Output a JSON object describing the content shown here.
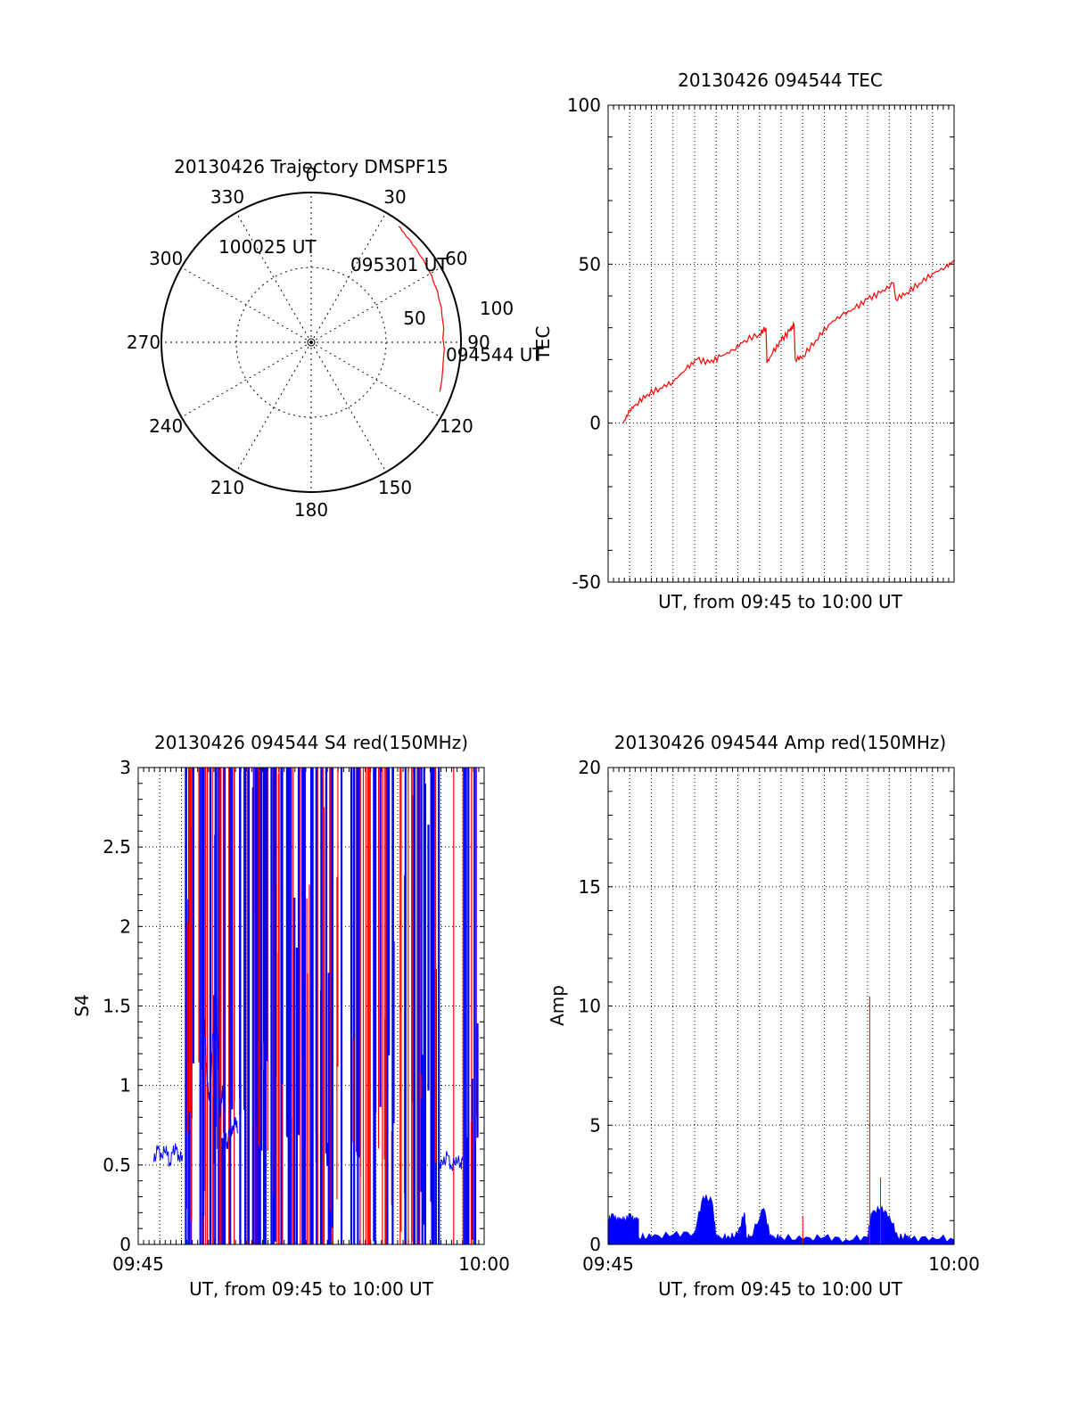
{
  "colors": {
    "primary": "#ff0000",
    "secondary": "#0000ff",
    "axis": "#000000",
    "grid": "#000000"
  },
  "chart_data": [
    {
      "type": "polar",
      "title": "20130426 Trajectory DMSPF15",
      "angle_ticks": [
        "0",
        "30",
        "60",
        "90",
        "120",
        "150",
        "180",
        "210",
        "240",
        "270",
        "300",
        "330"
      ],
      "radial_ticks": [
        "50",
        "100"
      ],
      "radial_max": 100,
      "trajectory": {
        "azimuth_deg": [
          111,
          107,
          103,
          98,
          93,
          88,
          84,
          79,
          75,
          71,
          68,
          64,
          61,
          57,
          54,
          51,
          48,
          46,
          44,
          42,
          40,
          39,
          38,
          37
        ],
        "zenith_deg": [
          92,
          91,
          90,
          89,
          89,
          88,
          89,
          89,
          90,
          90,
          91,
          91,
          92,
          92,
          93,
          93,
          94,
          94,
          95,
          95,
          96,
          96,
          97,
          97
        ]
      },
      "annotations": [
        "094544 UT",
        "095301 UT",
        "100025 UT"
      ]
    },
    {
      "type": "line",
      "title": "20130426 094544 TEC",
      "xlabel": "UT, from 09:45 to 10:00 UT",
      "ylabel": "TEC",
      "ylim": [
        -50,
        100
      ],
      "yticks": [
        "-50",
        "0",
        "50",
        "100"
      ],
      "xlim_min": [
        0,
        16
      ],
      "series": [
        {
          "x_min": [
            0.7,
            1.0,
            1.3,
            1.8,
            2.4,
            3.0,
            3.6,
            4.1,
            4.7,
            5.2,
            5.8,
            6.3,
            7.0,
            7.3,
            7.35,
            7.6,
            8.0,
            8.4,
            8.6,
            8.65,
            9.0,
            9.6,
            10.2,
            10.8,
            11.4,
            12.0,
            12.6,
            13.2,
            13.3,
            13.8,
            14.4,
            15.0,
            15.6,
            16.0
          ],
          "tec": [
            0,
            4,
            6,
            9,
            11,
            13,
            17,
            20,
            19,
            21,
            23,
            26,
            28,
            30,
            19,
            22,
            26,
            29,
            31,
            20,
            21,
            26,
            31,
            34,
            36,
            39,
            41,
            44,
            39,
            41,
            44,
            47,
            49,
            51
          ]
        }
      ]
    },
    {
      "type": "line",
      "title": "20130426 094544 S4 red(150MHz)",
      "xlabel": "UT, from 09:45 to 10:00 UT",
      "ylabel": "S4",
      "ylim": [
        0,
        3
      ],
      "yticks": [
        "0",
        "0.5",
        "1",
        "1.5",
        "2",
        "2.5",
        "3"
      ],
      "xticks": [
        "09:45",
        "10:00"
      ],
      "series": [
        {
          "name": "",
          "x_min": [
            0.72,
            0.9,
            1.1,
            1.3,
            1.45,
            1.6,
            1.75,
            1.9,
            2.05
          ],
          "values": [
            0.52,
            0.6,
            0.55,
            0.62,
            0.5,
            0.58,
            0.6,
            0.54,
            0.56
          ]
        },
        {
          "name": "",
          "x_min": [
            13.9,
            14.1,
            14.3,
            14.5,
            14.7,
            14.9,
            15.0
          ],
          "values": [
            0.52,
            0.5,
            0.56,
            0.48,
            0.55,
            0.5,
            0.53
          ]
        },
        {
          "name": "",
          "x_min": [
            3.0,
            3.1,
            3.2,
            3.3,
            3.4,
            3.5,
            3.6,
            3.7,
            3.8,
            3.9,
            4.0,
            4.1,
            4.2,
            4.3,
            4.4,
            4.5,
            4.6
          ],
          "values": [
            1.5,
            1.3,
            1.0,
            0.9,
            1.2,
            1.4,
            1.6,
            1.1,
            0.8,
            1.0,
            0.75,
            0.6,
            0.7,
            0.68,
            0.75,
            0.8,
            0.7
          ]
        }
      ]
    },
    {
      "type": "line",
      "title": "20130426 094544 Amp red(150MHz)",
      "xlabel": "UT, from 09:45 to 10:00 UT",
      "ylabel": "Amp",
      "ylim": [
        0,
        20
      ],
      "yticks": [
        "0",
        "5",
        "10",
        "15",
        "20"
      ],
      "xticks": [
        "09:45",
        "10:00"
      ],
      "series": [
        {
          "name": "",
          "x_min": [
            0.0,
            0.2,
            0.4,
            0.6,
            0.8,
            1.0,
            1.2,
            1.4,
            1.4,
            2.0,
            3.0,
            4.0,
            4.4,
            4.8,
            5.0,
            5.2,
            5.6,
            6.0,
            6.3,
            6.4,
            6.6,
            7.2,
            7.5,
            7.7,
            8.0,
            9.0,
            10.0,
            11.0,
            12.0,
            12.2,
            12.6,
            13.0,
            13.4,
            13.8,
            14.0,
            15.0,
            16.0
          ],
          "values": [
            1.0,
            1.2,
            1.0,
            1.1,
            1.0,
            1.2,
            1.0,
            1.1,
            0.3,
            0.3,
            0.4,
            0.5,
            2.0,
            1.8,
            0.3,
            0.3,
            0.3,
            0.4,
            1.3,
            0.3,
            0.3,
            1.5,
            0.3,
            0.3,
            0.3,
            0.2,
            0.3,
            0.2,
            0.3,
            1.3,
            1.5,
            1.2,
            0.3,
            0.3,
            0.2,
            0.3,
            0.2
          ]
        },
        {
          "name": "",
          "spike_x_min": [
            9.0,
            12.1,
            12.6
          ],
          "spike_values": [
            1.2,
            10.4,
            2.8
          ]
        }
      ]
    }
  ]
}
